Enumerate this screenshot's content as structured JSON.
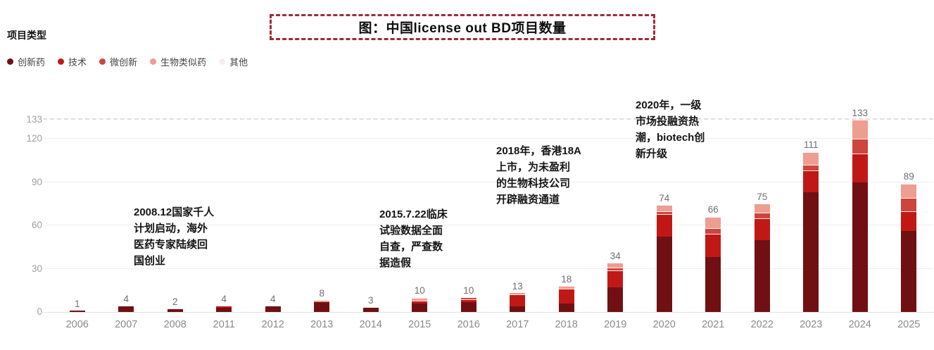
{
  "header": {
    "title": "图：中国license out BD项目数量",
    "legend_title": "项目类型"
  },
  "chart_data": {
    "type": "bar",
    "stacked": true,
    "title": "图：中国license out BD项目数量",
    "xlabel": "",
    "ylabel": "",
    "categories": [
      "2006",
      "2007",
      "2008",
      "2011",
      "2012",
      "2013",
      "2014",
      "2015",
      "2016",
      "2017",
      "2018",
      "2019",
      "2020",
      "2021",
      "2022",
      "2023",
      "2024",
      "2025"
    ],
    "series": [
      {
        "name": "创新药",
        "color": "#701013",
        "values": [
          1,
          4,
          2,
          3,
          4,
          7,
          3,
          6,
          7,
          4,
          6,
          17,
          52,
          38,
          50,
          83,
          90,
          56
        ]
      },
      {
        "name": "技术",
        "color": "#c01915",
        "values": [
          0,
          0,
          0,
          1,
          0,
          0,
          0,
          2,
          2,
          8,
          10,
          12,
          16,
          16,
          15,
          15,
          20,
          14
        ]
      },
      {
        "name": "微创新",
        "color": "#cd453d",
        "values": [
          0,
          0,
          0,
          0,
          0,
          0,
          0,
          0,
          1,
          0,
          0,
          2,
          2,
          4,
          4,
          4,
          10,
          9
        ]
      },
      {
        "name": "生物类似药",
        "color": "#ee9d91",
        "values": [
          0,
          0,
          0,
          0,
          0,
          1,
          0,
          2,
          0,
          1,
          2,
          3,
          4,
          8,
          6,
          9,
          13,
          10
        ]
      },
      {
        "name": "其他",
        "color": "#f5eeec",
        "values": [
          0,
          0,
          0,
          0,
          0,
          0,
          0,
          0,
          0,
          0,
          0,
          0,
          0,
          0,
          0,
          0,
          0,
          0
        ]
      }
    ],
    "totals": [
      1,
      4,
      2,
      4,
      4,
      8,
      3,
      10,
      10,
      13,
      18,
      34,
      74,
      66,
      75,
      111,
      133,
      89
    ],
    "yticks": [
      0,
      30,
      60,
      90,
      120,
      133
    ],
    "ylim": [
      0,
      133
    ],
    "grid": true,
    "legend_position": "top-left",
    "annotations": [
      "2008.12国家千人\n计划启动，海外\n医药专家陆续回\n国创业",
      "2015.7.22临床\n试验数据全面\n自查，严查数\n据造假",
      "2018年，香港18A\n上市，为未盈利\n的生物科技公司\n开辟融资通道",
      "2020年，一级\n市场投融资热\n潮，biotech创\n新升级"
    ]
  }
}
